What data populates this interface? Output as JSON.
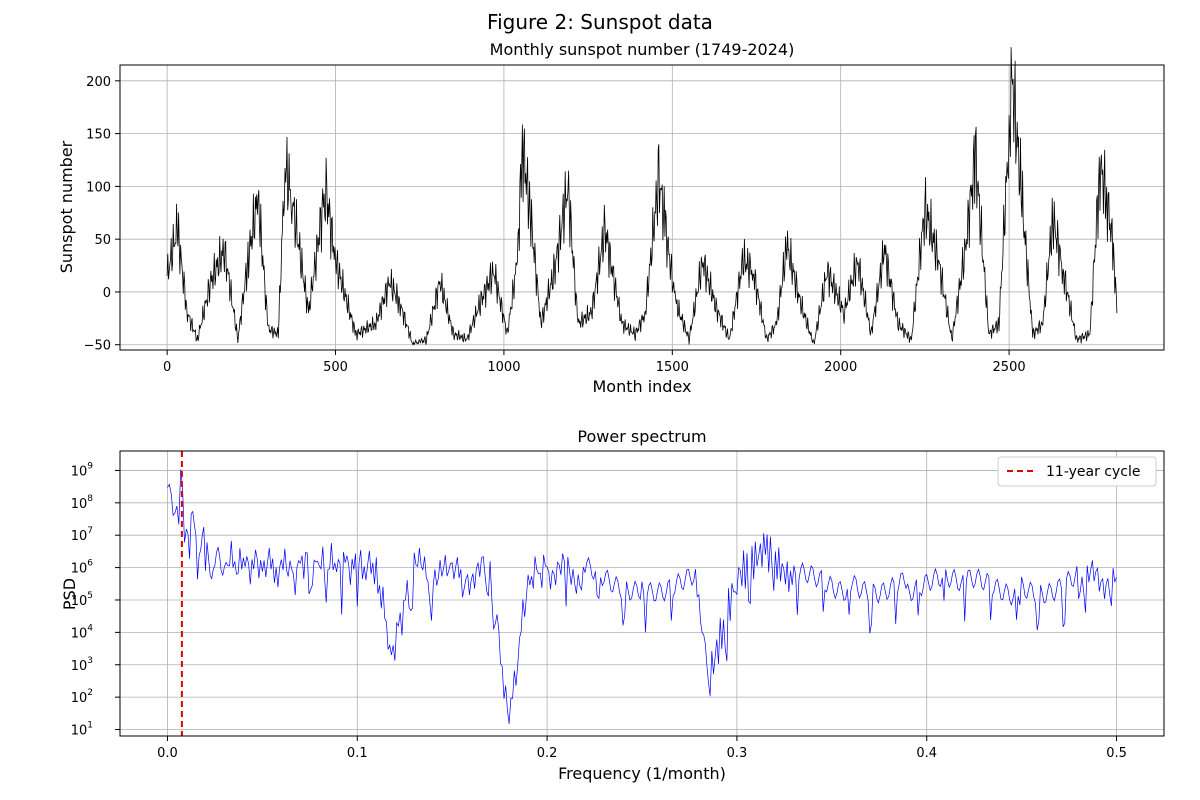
{
  "figure": {
    "title": "Figure 2: Sunspot data"
  },
  "chart_data": [
    {
      "type": "line",
      "title": "Monthly sunspot number (1749-2024)",
      "xlabel": "Month index",
      "ylabel": "Sunspot number",
      "xlim": [
        -140,
        2960
      ],
      "ylim": [
        -55,
        215
      ],
      "x_ticks": [
        0,
        500,
        1000,
        1500,
        2000,
        2500
      ],
      "y_ticks": [
        -50,
        0,
        50,
        100,
        150,
        200
      ],
      "grid": true,
      "series": [
        {
          "color": "#000000",
          "x": [
            0,
            30,
            60,
            90,
            130,
            170,
            210,
            240,
            270,
            300,
            330,
            350,
            370,
            420,
            470,
            500,
            560,
            620,
            660,
            690,
            730,
            770,
            810,
            850,
            890,
            930,
            970,
            1010,
            1040,
            1055,
            1080,
            1110,
            1150,
            1190,
            1220,
            1260,
            1300,
            1350,
            1390,
            1420,
            1460,
            1480,
            1510,
            1550,
            1590,
            1630,
            1670,
            1710,
            1740,
            1780,
            1810,
            1840,
            1880,
            1920,
            1960,
            2010,
            2050,
            2090,
            2130,
            2170,
            2210,
            2250,
            2290,
            2330,
            2370,
            2400,
            2440,
            2470,
            2500,
            2510,
            2540,
            2570,
            2600,
            2630,
            2660,
            2700,
            2740,
            2770,
            2790,
            2810,
            2820
          ],
          "y": [
            15,
            60,
            -20,
            -45,
            10,
            40,
            -45,
            30,
            90,
            -35,
            -40,
            120,
            90,
            -20,
            100,
            30,
            -40,
            -30,
            10,
            -10,
            -50,
            -45,
            10,
            -40,
            -45,
            -10,
            20,
            -40,
            30,
            140,
            70,
            -30,
            20,
            100,
            -30,
            -20,
            60,
            -30,
            -40,
            -20,
            110,
            60,
            -10,
            -45,
            30,
            -15,
            -45,
            30,
            20,
            -45,
            -30,
            45,
            -10,
            -50,
            20,
            -20,
            30,
            -40,
            40,
            -30,
            -45,
            80,
            30,
            -45,
            40,
            130,
            -40,
            -30,
            150,
            200,
            80,
            -40,
            -30,
            70,
            20,
            -45,
            -40,
            120,
            90,
            40,
            -20
          ]
        }
      ]
    },
    {
      "type": "line",
      "title": "Power spectrum",
      "xlabel": "Frequency (1/month)",
      "ylabel": "PSD",
      "xlim": [
        -0.025,
        0.525
      ],
      "ylim_log10": [
        0.8,
        9.6
      ],
      "y_scale": "log",
      "x_ticks": [
        "0.0",
        "0.1",
        "0.2",
        "0.3",
        "0.4",
        "0.5"
      ],
      "y_ticks": [
        "10^1",
        "10^2",
        "10^3",
        "10^4",
        "10^5",
        "10^6",
        "10^7",
        "10^8",
        "10^9"
      ],
      "grid": true,
      "legend_position": "top-right",
      "series": [
        {
          "color": "#0000ff",
          "x": [
            0.0,
            0.003,
            0.007,
            0.01,
            0.015,
            0.02,
            0.025,
            0.03,
            0.04,
            0.05,
            0.06,
            0.07,
            0.08,
            0.09,
            0.1,
            0.11,
            0.118,
            0.13,
            0.15,
            0.17,
            0.18,
            0.19,
            0.2,
            0.22,
            0.25,
            0.28,
            0.285,
            0.3,
            0.315,
            0.33,
            0.36,
            0.39,
            0.42,
            0.45,
            0.48,
            0.5
          ],
          "psd": [
            300000000.0,
            20000000.0,
            400000000.0,
            20000000.0,
            10000000.0,
            5000000.0,
            1000000.0,
            2000000.0,
            1000000.0,
            1500000.0,
            1000000.0,
            2000000.0,
            1000000.0,
            1500000.0,
            1000000.0,
            1000000.0,
            2000.0,
            1000000.0,
            500000.0,
            800000.0,
            15,
            500000.0,
            1000000.0,
            500000.0,
            400000.0,
            300000.0,
            300,
            500000.0,
            4000000.0,
            300000.0,
            400000.0,
            300000.0,
            200000.0,
            300000.0,
            400000.0,
            500000.0
          ]
        }
      ],
      "vline": {
        "label": "11-year cycle",
        "x": 0.0076,
        "color": "#dd0000"
      }
    }
  ]
}
